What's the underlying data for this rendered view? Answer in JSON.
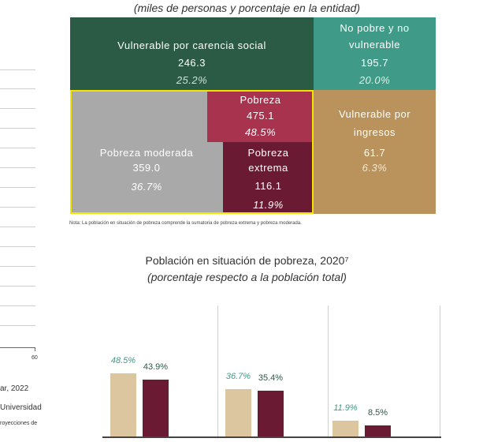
{
  "top_subtitle": "(miles de personas y porcentaje en la entidad)",
  "colors": {
    "vulnerable_social": "#2b5a45",
    "no_pobre": "#3f9b87",
    "ingresos": "#b9925c",
    "moderada": "#a9a9a9",
    "pobreza": "#a8334f",
    "extrema": "#6b1a33",
    "highlight": "#f2e600",
    "bar_2018": "#dcc6a0",
    "bar_2020": "#6b1a33"
  },
  "panels": {
    "vulnerable_social": {
      "label": "Vulnerable por carencia social",
      "value": "246.3",
      "pct": "25.2%"
    },
    "no_pobre": {
      "label_1": "No pobre y no",
      "label_2": "vulnerable",
      "value": "195.7",
      "pct": "20.0%"
    },
    "ingresos": {
      "label_1": "Vulnerable por",
      "label_2": "ingresos",
      "value": "61.7",
      "pct": "6.3%"
    },
    "pobreza": {
      "label": "Pobreza",
      "value": "475.1",
      "pct": "48.5%"
    },
    "moderada": {
      "label": "Pobreza moderada",
      "value": "359.0",
      "pct": "36.7%"
    },
    "extrema": {
      "label_1": "Pobreza",
      "label_2": "extrema",
      "value": "116.1",
      "pct": "11.9%"
    }
  },
  "note": "Nota: La población en situación de pobreza comprende la sumatoria de pobreza extrema y pobreza moderada.",
  "left_fragment": {
    "axis_tick": "60",
    "line_1": "ar, 2022",
    "line_2": "Universidad",
    "line_3": "royecciones de"
  },
  "chart_data": {
    "type": "bar",
    "title": "Población en situación de pobreza, 2020⁷",
    "subtitle": "(porcentaje respecto a la población total)",
    "categories": [
      "",
      "",
      ""
    ],
    "series": [
      {
        "values": [
          48.5,
          36.7,
          11.9
        ],
        "labels": [
          "48.5%",
          "36.7%",
          "11.9%"
        ]
      },
      {
        "values": [
          43.9,
          35.4,
          8.5
        ],
        "labels": [
          "43.9%",
          "35.4%",
          "8.5%"
        ]
      }
    ],
    "ylim": [
      0,
      100
    ],
    "grid": false
  }
}
